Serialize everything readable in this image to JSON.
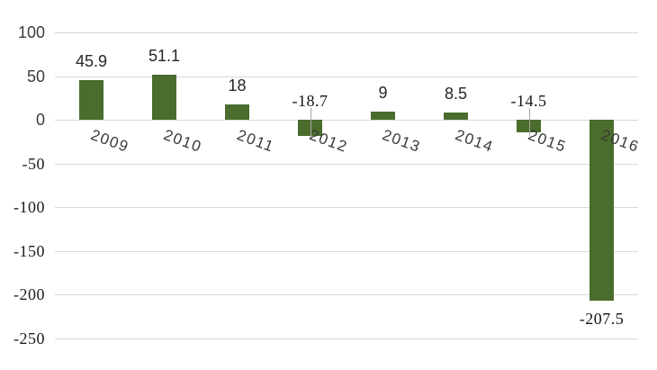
{
  "chart_data": {
    "type": "bar",
    "title": "",
    "xlabel": "",
    "ylabel": "",
    "categories": [
      "2009",
      "2010",
      "2011",
      "2012",
      "2013",
      "2014",
      "2015",
      "2016"
    ],
    "values": [
      45.9,
      51.1,
      18,
      -18.7,
      9,
      8.5,
      -14.5,
      -207.5
    ],
    "point_labels": [
      "45.9",
      "51.1",
      "18",
      "-18.7",
      "9",
      "8.5",
      "-14.5",
      "-207.5"
    ],
    "label_placements": [
      "above-bar",
      "above-bar",
      "above-bar",
      "above-axis-leader",
      "above-bar",
      "above-bar",
      "above-axis-leader",
      "below-bar"
    ],
    "y_ticks": [
      100,
      50,
      0,
      -50,
      -100,
      -150,
      -200,
      -250
    ],
    "y_tick_labels": [
      "100",
      "50",
      "0",
      "-50",
      "-100",
      "-150",
      "-200",
      "-250"
    ],
    "ylim": [
      -250,
      100
    ],
    "grid": "horizontal",
    "legend": "none",
    "colors": {
      "bar": "#4A6C2C",
      "gridline": "#D9D9D9",
      "leader_line": "#A6A6A6",
      "tick_label": "#3B3B3B",
      "negative_tick_label": "#1E1E1E",
      "data_label": "#262626",
      "negative_data_label": "#141414",
      "category_label": "#3A3A3A",
      "background": "#FFFFFF"
    }
  }
}
